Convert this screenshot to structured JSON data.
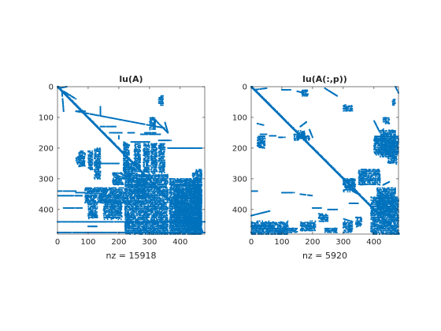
{
  "chart_data": [
    {
      "type": "spy",
      "title": "lu(A)",
      "xlabel": "nz = 15918",
      "xlim": [
        0,
        480
      ],
      "ylim": [
        0,
        480
      ],
      "y_reversed": true,
      "xticks": [
        0,
        100,
        200,
        300,
        400
      ],
      "yticks": [
        0,
        100,
        200,
        300,
        400
      ],
      "marker_color": "#0072BD",
      "pattern": {
        "diagonal": [
          [
            0,
            0,
            350,
            355
          ],
          [
            350,
            355,
            470,
            470
          ]
        ],
        "segments": [
          [
            5,
            5,
            30,
            0
          ],
          [
            20,
            15,
            60,
            40
          ],
          [
            15,
            20,
            20,
            80
          ],
          [
            60,
            80,
            350,
            135
          ],
          [
            60,
            80,
            90,
            80
          ],
          [
            140,
            130,
            190,
            130
          ],
          [
            170,
            150,
            210,
            150
          ],
          [
            230,
            150,
            250,
            150
          ],
          [
            285,
            150,
            320,
            150
          ],
          [
            320,
            110,
            360,
            150
          ],
          [
            270,
            155,
            335,
            155
          ],
          [
            350,
            115,
            360,
            150
          ],
          [
            0,
            340,
            60,
            340
          ],
          [
            60,
            345,
            90,
            345
          ],
          [
            0,
            355,
            80,
            355
          ],
          [
            0,
            440,
            480,
            440
          ],
          [
            0,
            475,
            480,
            475
          ],
          [
            100,
            455,
            130,
            455
          ],
          [
            20,
            395,
            80,
            395
          ],
          [
            140,
            250,
            200,
            250
          ],
          [
            400,
            320,
            470,
            320
          ],
          [
            140,
            65,
            140,
            95
          ],
          [
            200,
            160,
            200,
            170
          ],
          [
            360,
            200,
            470,
            200
          ],
          [
            240,
            180,
            300,
            180
          ],
          [
            330,
            175,
            370,
            175
          ]
        ],
        "blocks": [
          [
            220,
            285,
            360,
            480
          ],
          [
            365,
            300,
            470,
            480
          ],
          [
            215,
            180,
            235,
            300
          ],
          [
            250,
            185,
            270,
            280
          ],
          [
            280,
            185,
            300,
            280
          ],
          [
            305,
            185,
            325,
            280
          ],
          [
            330,
            185,
            350,
            280
          ],
          [
            120,
            200,
            140,
            300
          ],
          [
            100,
            210,
            115,
            270
          ],
          [
            70,
            210,
            90,
            260
          ],
          [
            60,
            230,
            70,
            250
          ],
          [
            90,
            330,
            220,
            380
          ],
          [
            100,
            380,
            130,
            430
          ],
          [
            150,
            370,
            210,
            430
          ],
          [
            380,
            330,
            470,
            470
          ],
          [
            440,
            270,
            470,
            480
          ],
          [
            300,
            100,
            320,
            140
          ],
          [
            330,
            30,
            345,
            60
          ],
          [
            230,
            250,
            250,
            310
          ],
          [
            180,
            280,
            215,
            320
          ],
          [
            260,
            300,
            290,
            360
          ]
        ]
      }
    },
    {
      "type": "spy",
      "title": "lu(A(:,p))",
      "xlabel": "nz = 5920",
      "xlim": [
        0,
        480
      ],
      "ylim": [
        0,
        480
      ],
      "y_reversed": true,
      "xticks": [
        0,
        100,
        200,
        300,
        400
      ],
      "yticks": [
        0,
        100,
        200,
        300,
        400
      ],
      "marker_color": "#0072BD",
      "pattern": {
        "diagonal": [
          [
            0,
            0,
            480,
            480
          ]
        ],
        "segments": [
          [
            10,
            10,
            50,
            5
          ],
          [
            100,
            10,
            130,
            10
          ],
          [
            150,
            15,
            170,
            20
          ],
          [
            240,
            5,
            280,
            30
          ],
          [
            470,
            0,
            480,
            20
          ],
          [
            400,
            110,
            420,
            150
          ],
          [
            160,
            130,
            180,
            115
          ],
          [
            190,
            140,
            200,
            165
          ],
          [
            20,
            120,
            40,
            125
          ],
          [
            30,
            155,
            50,
            155
          ],
          [
            60,
            160,
            80,
            160
          ],
          [
            90,
            165,
            110,
            165
          ],
          [
            0,
            340,
            20,
            340
          ],
          [
            100,
            345,
            140,
            345
          ],
          [
            160,
            350,
            200,
            355
          ],
          [
            0,
            420,
            60,
            405
          ],
          [
            200,
            395,
            230,
            395
          ],
          [
            250,
            400,
            280,
            400
          ],
          [
            320,
            380,
            350,
            380
          ],
          [
            0,
            455,
            50,
            450
          ],
          [
            300,
            430,
            330,
            440
          ],
          [
            430,
            320,
            450,
            310
          ],
          [
            330,
            340,
            350,
            350
          ]
        ],
        "blocks": [
          [
            400,
            160,
            480,
            220
          ],
          [
            420,
            140,
            470,
            230
          ],
          [
            150,
            145,
            175,
            170
          ],
          [
            140,
            155,
            160,
            175
          ],
          [
            170,
            160,
            190,
            175
          ],
          [
            445,
            210,
            475,
            250
          ],
          [
            390,
            360,
            480,
            480
          ],
          [
            410,
            330,
            470,
            420
          ],
          [
            350,
            270,
            420,
            320
          ],
          [
            300,
            300,
            340,
            340
          ],
          [
            0,
            440,
            120,
            480
          ],
          [
            50,
            460,
            150,
            475
          ],
          [
            160,
            440,
            210,
            470
          ],
          [
            240,
            460,
            280,
            475
          ],
          [
            300,
            440,
            330,
            475
          ],
          [
            340,
            425,
            360,
            455
          ],
          [
            220,
            415,
            250,
            440
          ],
          [
            460,
            40,
            470,
            60
          ],
          [
            430,
            100,
            450,
            120
          ],
          [
            300,
            60,
            330,
            80
          ],
          [
            165,
            10,
            185,
            30
          ],
          [
            20,
            160,
            45,
            200
          ]
        ]
      }
    }
  ]
}
